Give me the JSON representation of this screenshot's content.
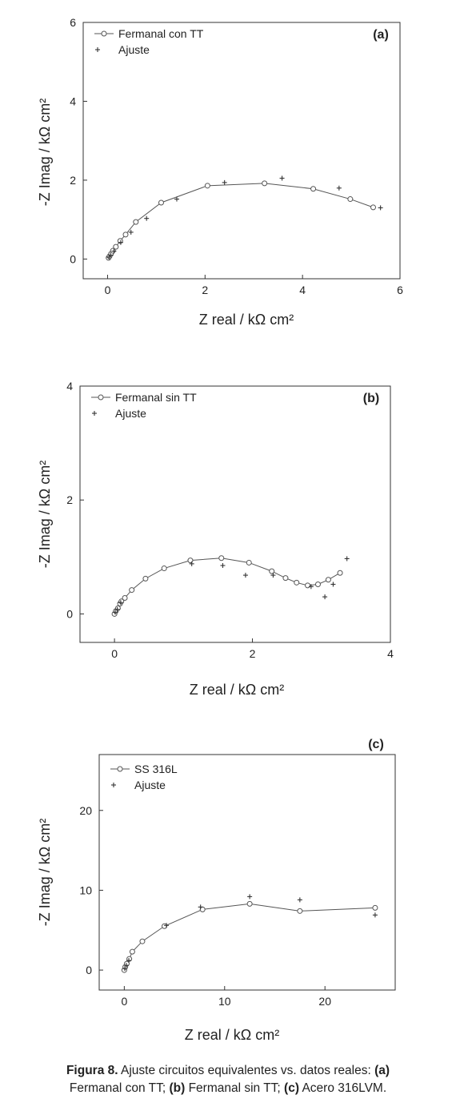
{
  "chart_data": [
    {
      "type": "scatter",
      "panel_label": "(a)",
      "xlabel": "Z real / kΩ cm²",
      "ylabel": "-Z Imag / kΩ cm²",
      "xlim": [
        -0.5,
        6
      ],
      "ylim": [
        -0.5,
        6
      ],
      "xticks": [
        0,
        2,
        4,
        6
      ],
      "yticks": [
        0,
        2,
        4,
        6
      ],
      "legend_position": "top-left",
      "series": [
        {
          "name": "Fermanal con TT",
          "marker": "circle-line",
          "x": [
            0.02,
            0.04,
            0.07,
            0.11,
            0.17,
            0.26,
            0.37,
            0.58,
            1.1,
            2.05,
            3.22,
            4.22,
            4.98,
            5.45
          ],
          "y": [
            0.03,
            0.07,
            0.13,
            0.21,
            0.31,
            0.46,
            0.62,
            0.94,
            1.43,
            1.86,
            1.92,
            1.78,
            1.52,
            1.31
          ]
        },
        {
          "name": "Ajuste",
          "marker": "plus",
          "x": [
            0.03,
            0.06,
            0.13,
            0.27,
            0.48,
            0.8,
            1.42,
            2.4,
            3.58,
            4.75,
            5.6
          ],
          "y": [
            0.05,
            0.1,
            0.2,
            0.42,
            0.68,
            1.03,
            1.52,
            1.94,
            2.05,
            1.8,
            1.3
          ]
        }
      ]
    },
    {
      "type": "scatter",
      "panel_label": "(b)",
      "xlabel": "Z real / kΩ cm²",
      "ylabel": "-Z Imag / kΩ cm²",
      "xlim": [
        -0.5,
        4
      ],
      "ylim": [
        -0.5,
        4
      ],
      "xticks": [
        0,
        2,
        4
      ],
      "yticks": [
        0,
        2,
        4
      ],
      "legend_position": "top-left",
      "series": [
        {
          "name": "Fermanal sin TT",
          "marker": "circle-line",
          "x": [
            0.0,
            0.02,
            0.05,
            0.08,
            0.1,
            0.15,
            0.25,
            0.45,
            0.72,
            1.1,
            1.55,
            1.95,
            2.28,
            2.48,
            2.64,
            2.8,
            2.95,
            3.1,
            3.27
          ],
          "y": [
            0.0,
            0.05,
            0.1,
            0.18,
            0.22,
            0.28,
            0.42,
            0.62,
            0.8,
            0.94,
            0.98,
            0.9,
            0.75,
            0.63,
            0.55,
            0.5,
            0.52,
            0.6,
            0.72
          ]
        },
        {
          "name": "Ajuste",
          "marker": "plus",
          "x": [
            0.01,
            0.04,
            0.09,
            1.12,
            1.57,
            1.9,
            2.3,
            2.85,
            3.05,
            3.17,
            3.37
          ],
          "y": [
            0.03,
            0.08,
            0.2,
            0.88,
            0.85,
            0.68,
            0.68,
            0.48,
            0.3,
            0.52,
            0.97
          ]
        }
      ]
    },
    {
      "type": "scatter",
      "panel_label": "(c)",
      "xlabel": "Z real / kΩ cm²",
      "ylabel": "-Z Imag / kΩ cm²",
      "xlim": [
        -2.5,
        27
      ],
      "ylim": [
        -2.5,
        27
      ],
      "xticks": [
        0,
        10,
        20
      ],
      "yticks": [
        0,
        10,
        20
      ],
      "legend_position": "top-left",
      "series": [
        {
          "name": "SS 316L",
          "marker": "circle-line",
          "x": [
            0.0,
            0.1,
            0.25,
            0.5,
            0.8,
            1.8,
            4.0,
            7.8,
            12.5,
            17.5,
            25.0
          ],
          "y": [
            0.0,
            0.4,
            0.8,
            1.4,
            2.3,
            3.6,
            5.5,
            7.6,
            8.3,
            7.4,
            7.8
          ]
        },
        {
          "name": "Ajuste",
          "marker": "plus",
          "x": [
            0.05,
            0.2,
            0.45,
            4.2,
            7.6,
            12.5,
            17.5,
            25.0
          ],
          "y": [
            0.2,
            0.6,
            1.2,
            5.6,
            7.9,
            9.2,
            8.8,
            6.9
          ]
        }
      ]
    }
  ],
  "caption": {
    "figure_label": "Figura 8.",
    "line1_text": " Ajuste circuitos equivalentes vs. datos reales: ",
    "label_a": "(a)",
    "text_a": "Fermanal con TT; ",
    "label_b": "(b)",
    "text_b": " Fermanal sin TT; ",
    "label_c": "(c)",
    "text_c": " Acero 316LVM."
  },
  "colors": {
    "axis": "#333333",
    "data": "#555555",
    "text": "#222222"
  }
}
